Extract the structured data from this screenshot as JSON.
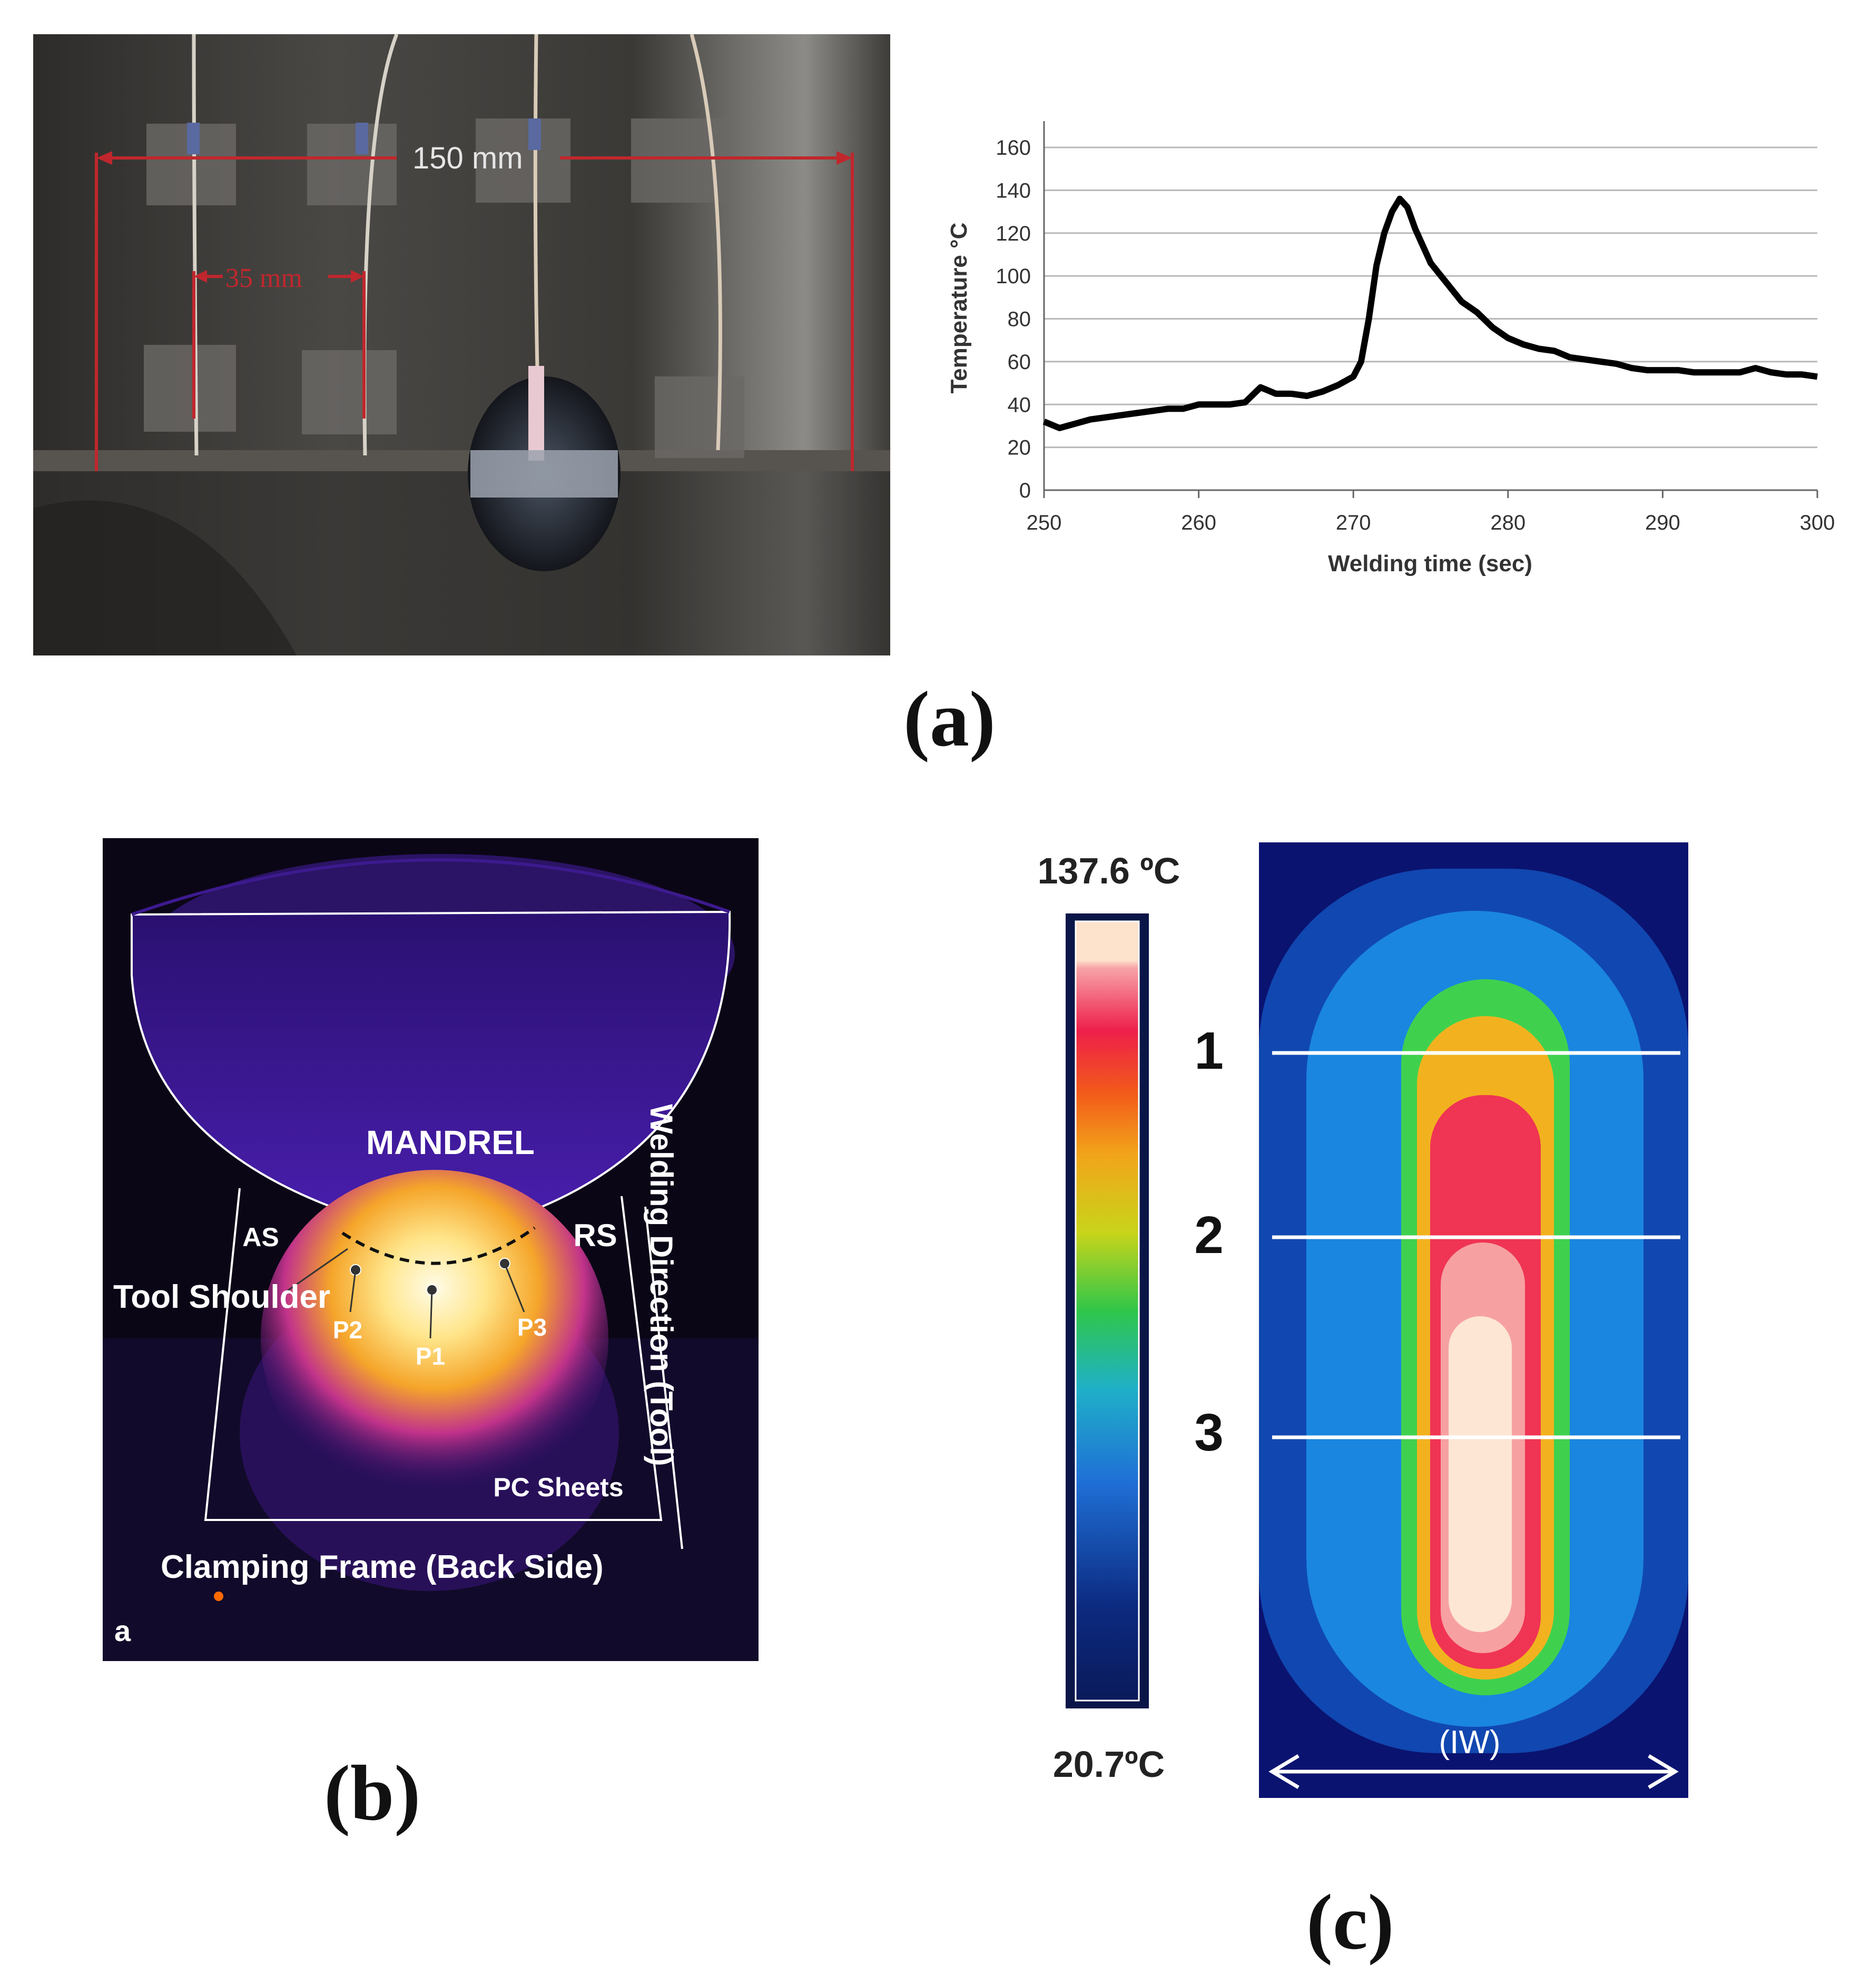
{
  "panel_a": {
    "dimension_total": "150 mm",
    "dimension_spacing": "35 mm",
    "caption": "(a)"
  },
  "chart_data": {
    "type": "line",
    "xlabel": "Welding time (sec)",
    "ylabel": "Temperature  °C",
    "xlim": [
      250,
      300
    ],
    "ylim": [
      0,
      160
    ],
    "x_ticks": [
      "250",
      "260",
      "270",
      "280",
      "290",
      "300"
    ],
    "y_ticks": [
      "0",
      "20",
      "40",
      "60",
      "80",
      "100",
      "120",
      "140",
      "160"
    ],
    "grid": true,
    "legend": "none",
    "series": [
      {
        "x": [
          250,
          251,
          252,
          253,
          254,
          255,
          256,
          257,
          258,
          259,
          260,
          261,
          262,
          263,
          264,
          265,
          266,
          267,
          268,
          269,
          270,
          270.5,
          271,
          271.5,
          272,
          272.5,
          273,
          273.5,
          274,
          275,
          276,
          277,
          278,
          279,
          280,
          281,
          282,
          283,
          284,
          285,
          286,
          287,
          288,
          289,
          290,
          291,
          292,
          293,
          294,
          295,
          296,
          297,
          298,
          299,
          300
        ],
        "y": [
          32,
          29,
          31,
          33,
          34,
          35,
          36,
          37,
          38,
          38,
          40,
          40,
          40,
          41,
          48,
          45,
          45,
          44,
          46,
          49,
          53,
          60,
          80,
          105,
          120,
          130,
          136,
          132,
          122,
          106,
          97,
          88,
          83,
          76,
          71,
          68,
          66,
          65,
          62,
          61,
          60,
          59,
          57,
          56,
          56,
          56,
          55,
          55,
          55,
          55,
          57,
          55,
          54,
          54,
          53
        ]
      }
    ]
  },
  "panel_b": {
    "mandrel": "MANDREL",
    "as": "AS",
    "rs": "RS",
    "tool_shoulder": "Tool Shoulder",
    "p1": "P1",
    "p2": "P2",
    "p3": "P3",
    "welding_direction": "Welding Direction (Tool)",
    "pc_sheets": "PC Sheets",
    "clamping_frame": "Clamping Frame (Back Side)",
    "corner_label": "a",
    "caption": "(b)"
  },
  "panel_c": {
    "max_temp": "137.6 ºC",
    "min_temp": "20.7ºC",
    "line_1": "1",
    "line_2": "2",
    "line_3": "3",
    "iw_label": "(IW)",
    "caption": "(c)"
  }
}
